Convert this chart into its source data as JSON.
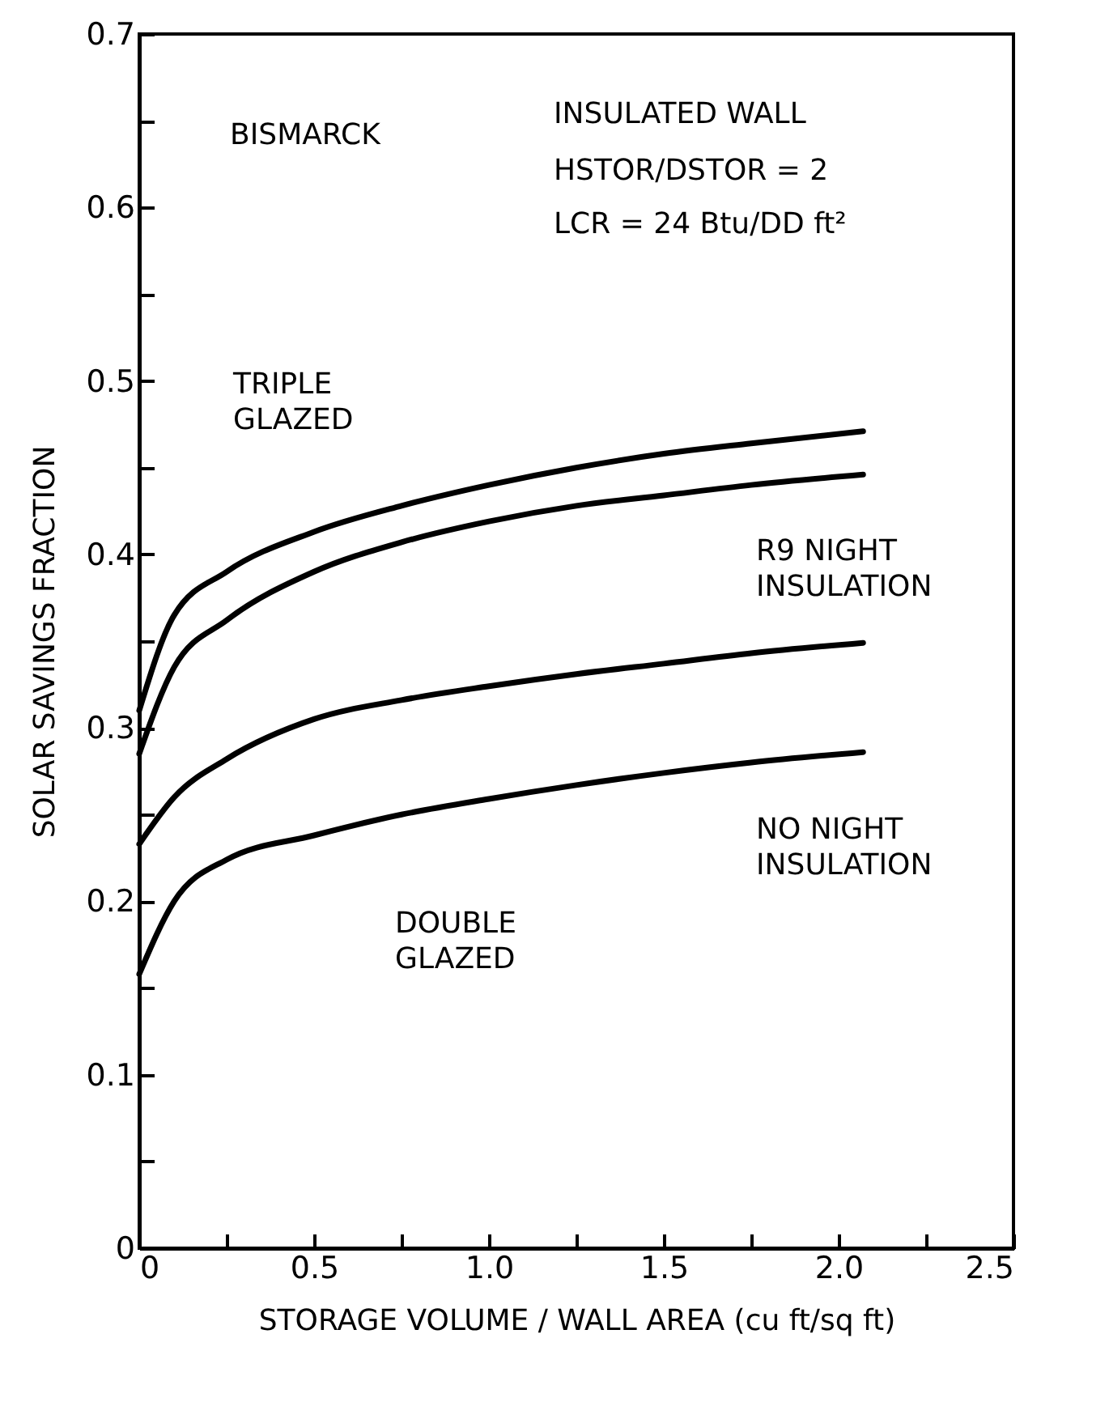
{
  "chart_data": {
    "type": "line",
    "xlabel": "STORAGE VOLUME / WALL AREA (cu ft/sq ft)",
    "ylabel": "SOLAR SAVINGS FRACTION",
    "x": [
      0,
      0.1,
      0.25,
      0.5,
      0.75,
      1.0,
      1.25,
      1.5,
      1.75,
      2.07
    ],
    "series": [
      {
        "color": "#000000",
        "values": [
          0.31,
          0.365,
          0.39,
          0.413,
          0.428,
          0.44,
          0.45,
          0.458,
          0.464,
          0.471
        ]
      },
      {
        "color": "#000000",
        "values": [
          0.285,
          0.335,
          0.362,
          0.39,
          0.407,
          0.419,
          0.428,
          0.434,
          0.44,
          0.446
        ]
      },
      {
        "color": "#000000",
        "values": [
          0.233,
          0.26,
          0.282,
          0.305,
          0.316,
          0.324,
          0.331,
          0.337,
          0.343,
          0.349
        ]
      },
      {
        "color": "#000000",
        "values": [
          0.158,
          0.2,
          0.224,
          0.238,
          0.25,
          0.259,
          0.267,
          0.274,
          0.28,
          0.286
        ]
      }
    ],
    "xlim": [
      0,
      2.5
    ],
    "ylim": [
      0,
      0.7
    ],
    "xticks": [
      0,
      {
        "value": 0.25,
        "label": null
      },
      0.5,
      {
        "value": 0.75,
        "label": null
      },
      {
        "value": 1,
        "label": "1.0"
      },
      {
        "value": 1.25,
        "label": null
      },
      1.5,
      {
        "value": 1.75,
        "label": null
      },
      {
        "value": 2,
        "label": "2.0"
      },
      {
        "value": 2.25,
        "label": null
      },
      2.5
    ],
    "yticks": [
      0,
      {
        "value": 0.05,
        "label": null
      },
      0.1,
      {
        "value": 0.15,
        "label": null
      },
      0.2,
      {
        "value": 0.25,
        "label": null
      },
      0.3,
      {
        "value": 0.35,
        "label": null
      },
      0.4,
      {
        "value": 0.45,
        "label": null
      },
      0.5,
      {
        "value": 0.55,
        "label": null
      },
      0.6,
      {
        "value": 0.65,
        "label": null
      },
      0.7
    ],
    "annotations": [
      "BISMARCK",
      "INSULATED WALL",
      "HSTOR/DSTOR = 2",
      "LCR = 24 Btu/DD ft²",
      "TRIPLE\nGLAZED",
      "R9 NIGHT\nINSULATION",
      "NO NIGHT\nINSULATION",
      "DOUBLE\nGLAZED"
    ],
    "grid": false,
    "marker": "none",
    "line_style": "solid"
  }
}
